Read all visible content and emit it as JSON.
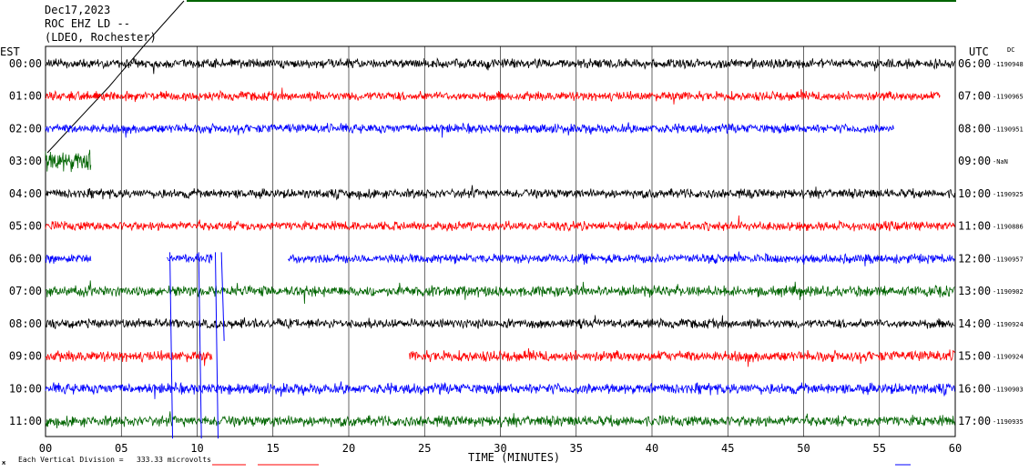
{
  "header": {
    "date": "Dec17,2023",
    "station": "ROC EHZ LD --",
    "network": "(LDEO, Rochester)"
  },
  "axes": {
    "left_timezone": "EST",
    "right_timezone": "UTC",
    "right_corner": "DC",
    "xlabel": "TIME (MINUTES)",
    "xlim": [
      0,
      60
    ],
    "x_ticks": [
      "00",
      "05",
      "10",
      "15",
      "20",
      "25",
      "30",
      "35",
      "40",
      "45",
      "50",
      "55",
      "60"
    ],
    "grid_vertical_every_min": 5
  },
  "footer": {
    "scale_label": "Each Vertical Division =",
    "scale_value": "333.33 microvolts"
  },
  "colors": [
    "#000000",
    "#ff0000",
    "#0000ff",
    "#006400"
  ],
  "chart_data": {
    "type": "line",
    "title": "",
    "xlabel": "TIME (MINUTES)",
    "ylabel": "",
    "xlim": [
      0,
      60
    ],
    "grid": true,
    "rows": [
      {
        "est": "00:00",
        "utc": "06:00",
        "dc": "-1190948",
        "color": "#000000",
        "segments": [
          [
            0,
            60
          ]
        ],
        "amp": 6
      },
      {
        "est": "01:00",
        "utc": "07:00",
        "dc": "-1190965",
        "color": "#ff0000",
        "segments": [
          [
            0,
            59
          ]
        ],
        "amp": 6
      },
      {
        "est": "02:00",
        "utc": "08:00",
        "dc": "-1190951",
        "color": "#0000ff",
        "segments": [
          [
            0,
            56
          ]
        ],
        "amp": 6
      },
      {
        "est": "03:00",
        "utc": "09:00",
        "dc": "-NaN",
        "color": "#006400",
        "segments": [
          [
            0,
            3
          ]
        ],
        "amp": 14
      },
      {
        "est": "04:00",
        "utc": "10:00",
        "dc": "-1190925",
        "color": "#000000",
        "segments": [
          [
            0,
            60
          ]
        ],
        "amp": 6
      },
      {
        "est": "05:00",
        "utc": "11:00",
        "dc": "-1190886",
        "color": "#ff0000",
        "segments": [
          [
            0,
            60
          ]
        ],
        "amp": 6
      },
      {
        "est": "06:00",
        "utc": "12:00",
        "dc": "-1190957",
        "color": "#0000ff",
        "segments": [
          [
            0,
            3
          ],
          [
            8,
            11
          ],
          [
            16,
            60
          ]
        ],
        "amp": 6
      },
      {
        "est": "07:00",
        "utc": "13:00",
        "dc": "-1190902",
        "color": "#006400",
        "segments": [
          [
            0,
            60
          ]
        ],
        "amp": 7
      },
      {
        "est": "08:00",
        "utc": "14:00",
        "dc": "-1190924",
        "color": "#000000",
        "segments": [
          [
            0,
            60
          ]
        ],
        "amp": 6
      },
      {
        "est": "09:00",
        "utc": "15:00",
        "dc": "-1190924",
        "color": "#ff0000",
        "segments": [
          [
            0,
            11
          ],
          [
            24,
            60
          ]
        ],
        "amp": 7
      },
      {
        "est": "10:00",
        "utc": "16:00",
        "dc": "-1190903",
        "color": "#0000ff",
        "segments": [
          [
            0,
            60
          ]
        ],
        "amp": 7
      },
      {
        "est": "11:00",
        "utc": "17:00",
        "dc": "-1190935",
        "color": "#006400",
        "segments": [
          [
            0,
            60
          ]
        ],
        "amp": 7
      }
    ]
  }
}
